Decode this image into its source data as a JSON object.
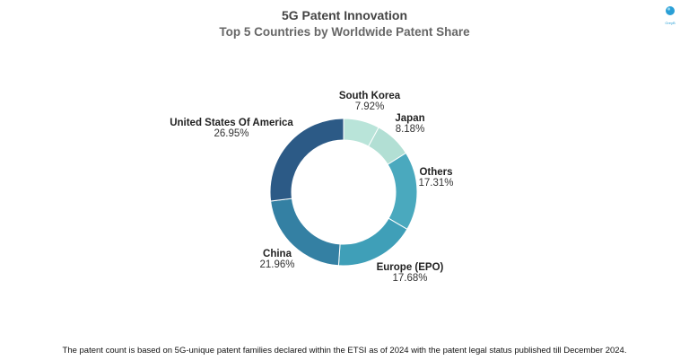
{
  "chart_data": {
    "type": "pie",
    "style": "donut",
    "title": "5G Patent Innovation",
    "subtitle": "Top 5 Countries by Worldwide Patent Share",
    "categories": [
      "South Korea",
      "Japan",
      "Others",
      "Europe (EPO)",
      "China",
      "United States Of America"
    ],
    "values": [
      7.92,
      8.18,
      17.31,
      17.68,
      21.96,
      26.95
    ],
    "labels": [
      "7.92%",
      "8.18%",
      "17.31%",
      "17.68%",
      "21.96%",
      "26.95%"
    ],
    "colors": [
      "#b9e4d9",
      "#b2dfd4",
      "#4aa9be",
      "#3f9fb8",
      "#3480a3",
      "#2c5a86"
    ]
  },
  "footnote": "The patent count is based on 5G-unique patent families declared within the ETSI as of 2024 with the patent legal status published till December 2024.",
  "logo": {
    "text": "GreyB"
  }
}
